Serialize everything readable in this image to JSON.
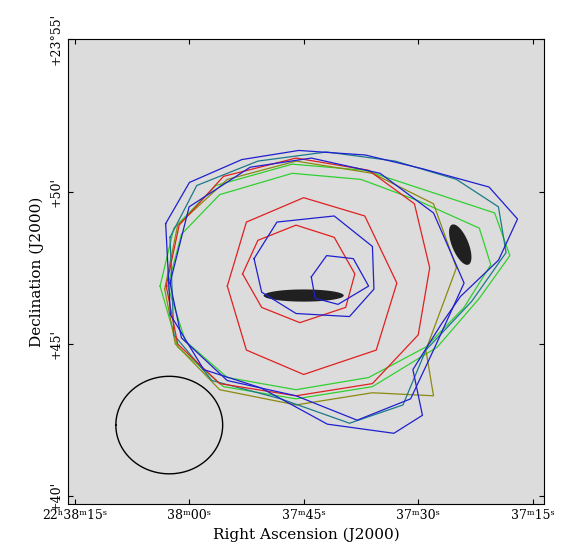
{
  "chart_data": {
    "type": "contour",
    "x_label": "Right Ascension (J2000)",
    "y_label": "Declination (J2000)",
    "xlim": [
      2295.9,
      2233.5
    ],
    "ylim": [
      39.75,
      55
    ],
    "xticks": [
      {
        "value": 2295,
        "label": "22ʰ38ᵐ15ˢ"
      },
      {
        "value": 2280,
        "label": "38ᵐ00ˢ"
      },
      {
        "value": 2265,
        "label": "37ᵐ45ˢ"
      },
      {
        "value": 2250,
        "label": "37ᵐ30ˢ"
      },
      {
        "value": 2235,
        "label": "37ᵐ15ˢ"
      }
    ],
    "yticks": [
      {
        "value": 40,
        "label": "+40'"
      },
      {
        "value": 45,
        "label": "+45'"
      },
      {
        "value": 50,
        "label": "+50'"
      },
      {
        "value": 55,
        "label": "+23°55'"
      }
    ],
    "series": [
      {
        "color": "#30d030",
        "x": [
          2283.8,
          2282.0,
          2276.5,
          2266.5,
          2257.0,
          2248.5,
          2240.0,
          2238.0,
          2242.0,
          2247.5,
          2256.0,
          2266.0,
          2275.5,
          2281.5
        ],
        "values": [
          46.9,
          48.8,
          50.2,
          50.9,
          50.7,
          50.0,
          49.3,
          47.9,
          46.5,
          44.9,
          43.6,
          43.2,
          43.6,
          44.9
        ]
      },
      {
        "color": "#30d030",
        "x": [
          2282.8,
          2281.0,
          2276.0,
          2266.5,
          2257.5,
          2250.0,
          2242.0,
          2240.5,
          2244.0,
          2249.0,
          2256.5,
          2266.0,
          2275.0,
          2280.5
        ],
        "values": [
          46.9,
          48.6,
          49.9,
          50.6,
          50.4,
          49.7,
          48.8,
          47.6,
          46.2,
          44.9,
          43.9,
          43.5,
          43.9,
          45.1
        ]
      },
      {
        "color": "#8a8a10",
        "x": [
          2283.2,
          2281.5,
          2275.0,
          2266.0,
          2256.0,
          2248.0,
          2245.0,
          2249.0,
          2248.0,
          2256.0,
          2266.0,
          2276.0,
          2281.8
        ],
        "values": [
          46.8,
          48.9,
          50.4,
          51.0,
          50.6,
          49.6,
          47.5,
          44.8,
          43.3,
          43.4,
          43.0,
          43.5,
          45.0
        ]
      },
      {
        "color": "#1a7a8a",
        "x": [
          2282.5,
          2279.0,
          2271.0,
          2262.0,
          2253.0,
          2245.0,
          2239.5,
          2238.5,
          2243.0,
          2249.0,
          2252.0,
          2259.0,
          2268.0,
          2277.0,
          2282.0
        ],
        "values": [
          48.5,
          50.2,
          51.0,
          51.3,
          51.0,
          50.4,
          49.5,
          48.0,
          46.4,
          44.8,
          43.0,
          42.4,
          43.2,
          43.8,
          45.3
        ]
      },
      {
        "color": "#e02020",
        "x": [
          2283.0,
          2281.3,
          2275.5,
          2266.0,
          2256.5,
          2250.5,
          2248.5,
          2250.0,
          2256.0,
          2266.0,
          2276.0,
          2281.5
        ],
        "values": [
          46.9,
          48.9,
          50.5,
          51.1,
          50.7,
          49.6,
          47.5,
          45.3,
          43.7,
          43.3,
          43.7,
          45.0
        ]
      },
      {
        "color": "#e02020",
        "x": [
          2275.0,
          2272.5,
          2265.0,
          2257.0,
          2252.8,
          2255.5,
          2265.0,
          2272.5
        ],
        "values": [
          46.9,
          49.0,
          49.8,
          49.2,
          47.0,
          44.8,
          44.0,
          44.8
        ]
      },
      {
        "color": "#e02020",
        "x": [
          2273.0,
          2271.0,
          2266.0,
          2261.0,
          2258.3,
          2259.5,
          2265.5,
          2270.5
        ],
        "values": [
          47.3,
          48.4,
          48.9,
          48.5,
          47.3,
          46.2,
          45.7,
          46.2
        ]
      },
      {
        "color": "#1f1fd0",
        "x": [
          2283.07,
          2279.96,
          2273.11,
          2265.64,
          2256.92,
          2249.45,
          2240.73,
          2237.0,
          2239.49,
          2244.47,
          2246.96,
          2250.7,
          2249.45,
          2253.19,
          2261.9,
          2270.6,
          2278.09,
          2282.45
        ],
        "values": [
          48.95,
          50.3,
          51.05,
          51.35,
          51.2,
          50.75,
          50.15,
          49.1,
          47.75,
          46.56,
          45.66,
          44.16,
          42.66,
          42.07,
          42.37,
          43.56,
          44.16,
          45.96
        ]
      },
      {
        "color": "#1f1fd0",
        "x": [
          2282.5,
          2280.0,
          2272.0,
          2264.0,
          2255.0,
          2248.0,
          2244.0,
          2248.0,
          2251.0,
          2258.0,
          2266.0,
          2275.0,
          2281.0
        ],
        "values": [
          47.0,
          49.5,
          50.8,
          51.1,
          50.6,
          49.3,
          47.0,
          44.8,
          43.2,
          42.5,
          43.3,
          43.8,
          45.2
        ]
      },
      {
        "color": "#1f1fd0",
        "x": [
          2271.5,
          2268.5,
          2261.0,
          2256.0,
          2255.8,
          2259.0,
          2266.0,
          2270.5
        ],
        "values": [
          47.8,
          49.0,
          49.2,
          48.2,
          46.8,
          45.9,
          46.0,
          46.7
        ]
      },
      {
        "color": "#1f1fd0",
        "x": [
          2264.0,
          2262.0,
          2258.5,
          2256.5,
          2260.5,
          2263.5
        ],
        "values": [
          47.2,
          47.9,
          47.8,
          46.9,
          46.3,
          46.5
        ]
      }
    ],
    "beam": {
      "x": 2282.6,
      "y": 42.34,
      "radius_arcmin": 1.6
    },
    "galaxies": [
      {
        "x": 2265.0,
        "y": 46.59,
        "major_arcmin": 2.4,
        "minor_arcmin": 0.4,
        "pa": 90
      },
      {
        "x": 2244.5,
        "y": 48.26,
        "major_arcmin": 1.4,
        "minor_arcmin": 0.5,
        "pa": 20
      }
    ]
  }
}
